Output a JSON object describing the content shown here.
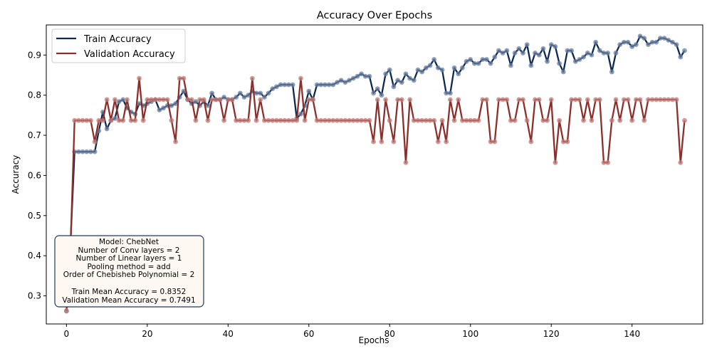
{
  "chart_data": {
    "type": "line",
    "title": "Accuracy Over Epochs",
    "xlabel": "Epochs",
    "ylabel": "Accuracy",
    "xlim": [
      -5,
      157.5
    ],
    "ylim": [
      0.23,
      0.975
    ],
    "xticks": [
      0,
      20,
      40,
      60,
      80,
      100,
      120,
      140
    ],
    "yticks": [
      0.3,
      0.4,
      0.5,
      0.6,
      0.7,
      0.8,
      0.9
    ],
    "ytick_labels": [
      "0.3",
      "0.4",
      "0.5",
      "0.6",
      "0.7",
      "0.8",
      "0.9"
    ],
    "grid": false,
    "legend_position": "top-left",
    "series": [
      {
        "name": "Train Accuracy",
        "color": "#0d2a52",
        "marker_color": "#6b7fa0",
        "values": [
          0.262,
          0.433,
          0.659,
          0.659,
          0.659,
          0.659,
          0.659,
          0.659,
          0.711,
          0.758,
          0.716,
          0.737,
          0.742,
          0.784,
          0.789,
          0.768,
          0.758,
          0.753,
          0.779,
          0.774,
          0.779,
          0.784,
          0.789,
          0.763,
          0.768,
          0.774,
          0.774,
          0.779,
          0.795,
          0.81,
          0.789,
          0.779,
          0.784,
          0.774,
          0.784,
          0.774,
          0.805,
          0.789,
          0.789,
          0.795,
          0.789,
          0.789,
          0.795,
          0.805,
          0.795,
          0.8,
          0.81,
          0.805,
          0.805,
          0.795,
          0.805,
          0.816,
          0.821,
          0.826,
          0.826,
          0.826,
          0.826,
          0.742,
          0.753,
          0.774,
          0.81,
          0.789,
          0.826,
          0.826,
          0.826,
          0.826,
          0.826,
          0.832,
          0.837,
          0.832,
          0.837,
          0.842,
          0.847,
          0.853,
          0.847,
          0.847,
          0.805,
          0.816,
          0.8,
          0.853,
          0.863,
          0.821,
          0.837,
          0.832,
          0.853,
          0.842,
          0.837,
          0.863,
          0.858,
          0.868,
          0.874,
          0.889,
          0.868,
          0.863,
          0.805,
          0.805,
          0.868,
          0.853,
          0.868,
          0.884,
          0.889,
          0.879,
          0.879,
          0.889,
          0.889,
          0.879,
          0.895,
          0.911,
          0.905,
          0.911,
          0.874,
          0.905,
          0.916,
          0.905,
          0.926,
          0.874,
          0.905,
          0.9,
          0.916,
          0.884,
          0.926,
          0.921,
          0.879,
          0.858,
          0.911,
          0.911,
          0.884,
          0.889,
          0.895,
          0.905,
          0.9,
          0.932,
          0.911,
          0.905,
          0.905,
          0.858,
          0.905,
          0.926,
          0.932,
          0.932,
          0.921,
          0.926,
          0.947,
          0.942,
          0.926,
          0.932,
          0.932,
          0.942,
          0.942,
          0.937,
          0.932,
          0.926,
          0.895,
          0.911
        ]
      },
      {
        "name": "Validation Accuracy",
        "color": "#8c2f2a",
        "marker_color": "#c07a75",
        "values": [
          0.263,
          0.421,
          0.737,
          0.737,
          0.737,
          0.737,
          0.737,
          0.684,
          0.737,
          0.737,
          0.789,
          0.737,
          0.789,
          0.737,
          0.737,
          0.789,
          0.737,
          0.737,
          0.842,
          0.737,
          0.789,
          0.789,
          0.789,
          0.789,
          0.789,
          0.789,
          0.737,
          0.684,
          0.842,
          0.842,
          0.789,
          0.789,
          0.737,
          0.789,
          0.789,
          0.737,
          0.789,
          0.789,
          0.789,
          0.737,
          0.789,
          0.789,
          0.737,
          0.737,
          0.737,
          0.737,
          0.842,
          0.737,
          0.789,
          0.737,
          0.737,
          0.737,
          0.737,
          0.737,
          0.737,
          0.737,
          0.737,
          0.737,
          0.842,
          0.737,
          0.789,
          0.789,
          0.737,
          0.737,
          0.737,
          0.737,
          0.737,
          0.737,
          0.737,
          0.737,
          0.737,
          0.737,
          0.737,
          0.737,
          0.737,
          0.737,
          0.684,
          0.789,
          0.684,
          0.789,
          0.737,
          0.684,
          0.789,
          0.789,
          0.632,
          0.789,
          0.737,
          0.737,
          0.737,
          0.737,
          0.737,
          0.737,
          0.684,
          0.737,
          0.684,
          0.789,
          0.737,
          0.789,
          0.737,
          0.737,
          0.737,
          0.737,
          0.737,
          0.789,
          0.789,
          0.684,
          0.684,
          0.789,
          0.789,
          0.789,
          0.737,
          0.737,
          0.789,
          0.789,
          0.737,
          0.684,
          0.789,
          0.789,
          0.737,
          0.737,
          0.789,
          0.632,
          0.737,
          0.684,
          0.684,
          0.789,
          0.789,
          0.789,
          0.737,
          0.789,
          0.737,
          0.789,
          0.789,
          0.632,
          0.632,
          0.737,
          0.789,
          0.737,
          0.789,
          0.789,
          0.737,
          0.789,
          0.789,
          0.737,
          0.789,
          0.789,
          0.789,
          0.789,
          0.789,
          0.789,
          0.789,
          0.789,
          0.632,
          0.737
        ]
      }
    ],
    "annotation": {
      "lines": [
        "Model: ChebNet",
        "Number of Conv layers = 2",
        "Number of Linear layers = 1",
        "Pooling method = add",
        "Order of Chebisheb Polynomial = 2",
        "",
        "Train Mean Accuracy = 0.8352",
        "Validation Mean Accuracy = 0.7491"
      ]
    }
  }
}
